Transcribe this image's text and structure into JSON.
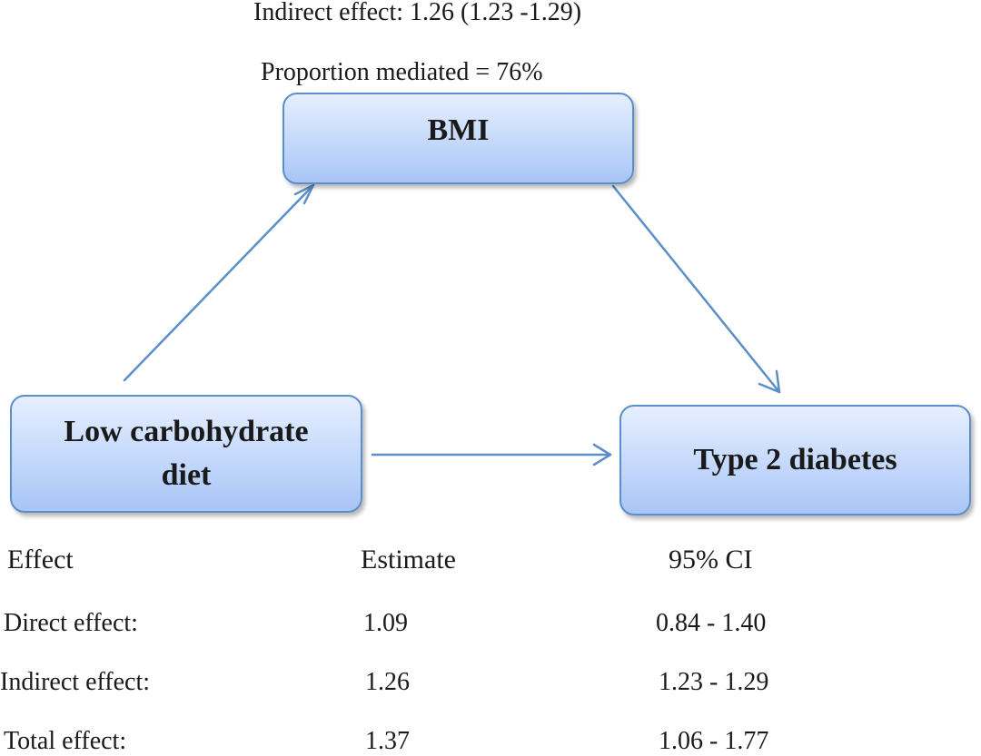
{
  "top_text": {
    "indirect_effect": "Indirect effect: 1.26 (1.23 -1.29)",
    "proportion_mediated": "Proportion mediated = 76%"
  },
  "nodes": {
    "mediator": "BMI",
    "exposure": "Low carbohydrate diet",
    "outcome": "Type 2 diabetes"
  },
  "colors": {
    "box_border": "#5b8fc9",
    "box_fill_top": "#e6efff",
    "box_fill_bottom": "#a9c5f5",
    "arrow": "#5b8fc9"
  },
  "table": {
    "headers": [
      "Effect",
      "Estimate",
      "95% CI"
    ],
    "rows": [
      {
        "effect": "Direct effect:",
        "estimate": "1.09",
        "ci": "0.84 - 1.40"
      },
      {
        "effect": "Indirect effect:",
        "estimate": "1.26",
        "ci": "1.23 - 1.29"
      },
      {
        "effect": "Total effect:",
        "estimate": "1.37",
        "ci": "1.06 - 1.77"
      }
    ]
  }
}
